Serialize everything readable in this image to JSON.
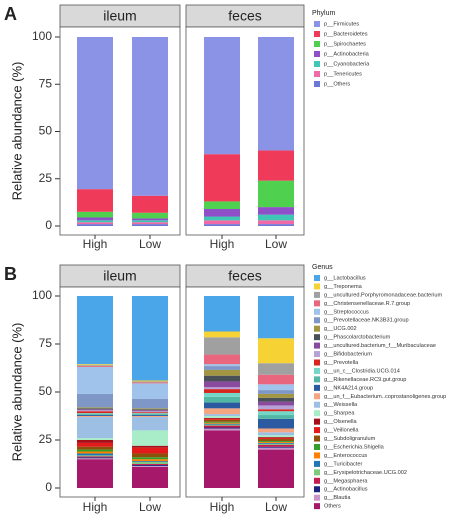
{
  "chart_data": [
    {
      "type": "bar",
      "stacked": true,
      "panel": "A",
      "ylabel": "Relative abundance (%)",
      "legend_title": "Phylum",
      "ylim": [
        0,
        100
      ],
      "yticks": [
        0,
        25,
        50,
        75,
        100
      ],
      "facets": [
        {
          "title": "ileum",
          "categories": [
            "High",
            "Low"
          ]
        },
        {
          "title": "feces",
          "categories": [
            "High",
            "Low"
          ]
        }
      ],
      "series": [
        {
          "name": "p__Firmicutes",
          "color": "#8a93e6",
          "values": [
            80.5,
            84,
            62,
            60
          ]
        },
        {
          "name": "p__Bacteroidetes",
          "color": "#f03a5a",
          "values": [
            12,
            9,
            25,
            16
          ]
        },
        {
          "name": "p__Spirochaetes",
          "color": "#4fd04f",
          "values": [
            3,
            3,
            4,
            14
          ]
        },
        {
          "name": "p__Actinobacteria",
          "color": "#8e4fc9",
          "values": [
            1.5,
            1,
            4,
            4
          ]
        },
        {
          "name": "p__Cyanobacteria",
          "color": "#3fc6b4",
          "values": [
            1,
            1,
            2,
            3
          ]
        },
        {
          "name": "p__Tenericutes",
          "color": "#f06aa8",
          "values": [
            1,
            1,
            2,
            2
          ]
        },
        {
          "name": "p__Others",
          "color": "#6b78d8",
          "values": [
            1,
            1,
            1,
            1
          ]
        }
      ]
    },
    {
      "type": "bar",
      "stacked": true,
      "panel": "B",
      "ylabel": "Relative abundance (%)",
      "legend_title": "Genus",
      "ylim": [
        0,
        100
      ],
      "yticks": [
        0,
        25,
        50,
        75,
        100
      ],
      "facets": [
        {
          "title": "ileum",
          "categories": [
            "High",
            "Low"
          ]
        },
        {
          "title": "feces",
          "categories": [
            "High",
            "Low"
          ]
        }
      ],
      "series": [
        {
          "name": "g__Lactobacillus",
          "color": "#4aa6e8",
          "values": [
            35.5,
            44,
            18.5,
            22
          ]
        },
        {
          "name": "g__Treponema",
          "color": "#f6d235",
          "values": [
            0.5,
            0.5,
            3,
            13
          ]
        },
        {
          "name": "g__uncultured.Porphyromonadaceae.bacterium",
          "color": "#a0a0a0",
          "values": [
            0.5,
            0.5,
            9,
            6
          ]
        },
        {
          "name": "g__Christensenellaceae.R.7.group",
          "color": "#e8677e",
          "values": [
            0.5,
            0.5,
            5,
            5
          ]
        },
        {
          "name": "g__Streptococcus",
          "color": "#9fc3ea",
          "values": [
            14,
            8,
            1,
            3
          ]
        },
        {
          "name": "g__Prevotellaceae.NK3B31.group",
          "color": "#7f97c6",
          "values": [
            7,
            5,
            2,
            2
          ]
        },
        {
          "name": "g__UCG.002",
          "color": "#a39642",
          "values": [
            0.5,
            0.5,
            3,
            2
          ]
        },
        {
          "name": "g__Phascolarctobacterium",
          "color": "#4a5058",
          "values": [
            0.5,
            0.5,
            3,
            2
          ]
        },
        {
          "name": "g__uncultured.bacterium_f__Muribaculaceae",
          "color": "#8a4a9e",
          "values": [
            0.5,
            0.5,
            3,
            2
          ]
        },
        {
          "name": "g__Bifidobacterium",
          "color": "#b6a2d6",
          "values": [
            0.5,
            0.5,
            1,
            2
          ]
        },
        {
          "name": "g__Prevotella",
          "color": "#d7261e",
          "values": [
            1,
            0.5,
            2,
            1
          ]
        },
        {
          "name": "g__un_c__Clostridia.UCG.014",
          "color": "#74d6c6",
          "values": [
            0.5,
            0.5,
            2,
            2
          ]
        },
        {
          "name": "g__Rikenellaceae.RC9.gut.group",
          "color": "#52b7a4",
          "values": [
            0.5,
            0.5,
            3,
            2
          ]
        },
        {
          "name": "g__NK4A214.group",
          "color": "#2c5aa0",
          "values": [
            0.5,
            0.5,
            3,
            5
          ]
        },
        {
          "name": "g__un_f__Eubacterium..coprostanoligenes.group",
          "color": "#f4a582",
          "values": [
            0.5,
            0.5,
            3,
            2
          ]
        },
        {
          "name": "g__Weissella",
          "color": "#9dbfe4",
          "values": [
            11,
            7,
            1,
            1.5
          ]
        },
        {
          "name": "g__Sharpea",
          "color": "#a8ecc8",
          "values": [
            1,
            8,
            1,
            1
          ]
        },
        {
          "name": "g__Olsenella",
          "color": "#a50f15",
          "values": [
            1.5,
            1,
            0.5,
            0.5
          ]
        },
        {
          "name": "g__Veillonella",
          "color": "#e31a1c",
          "values": [
            2,
            3,
            0.5,
            0.5
          ]
        },
        {
          "name": "g__Subdoligranulum",
          "color": "#8c510a",
          "values": [
            1.5,
            2,
            1,
            1
          ]
        },
        {
          "name": "g__Escherichia.Shigella",
          "color": "#33a02c",
          "values": [
            1,
            1,
            0.5,
            0.5
          ]
        },
        {
          "name": "g__Enterococcus",
          "color": "#ff7f00",
          "values": [
            1,
            1,
            0.5,
            0.5
          ]
        },
        {
          "name": "g__Turicibacter",
          "color": "#1f78b4",
          "values": [
            1,
            0.5,
            0.5,
            0.5
          ]
        },
        {
          "name": "g__Erysipelotrichaceae.UCG.002",
          "color": "#7fc97f",
          "values": [
            0.5,
            1,
            0.5,
            0.5
          ]
        },
        {
          "name": "g__Megasphaera",
          "color": "#c51b4d",
          "values": [
            0.5,
            0.5,
            1,
            1
          ]
        },
        {
          "name": "g__Actinobacillus",
          "color": "#1a237e",
          "values": [
            0.5,
            0.5,
            0.5,
            0.5
          ]
        },
        {
          "name": "g__Blautia",
          "color": "#c994c7",
          "values": [
            0.5,
            0.5,
            1,
            1
          ]
        },
        {
          "name": "Others",
          "color": "#a6196a",
          "values": [
            15,
            11,
            30,
            20
          ]
        }
      ]
    }
  ]
}
